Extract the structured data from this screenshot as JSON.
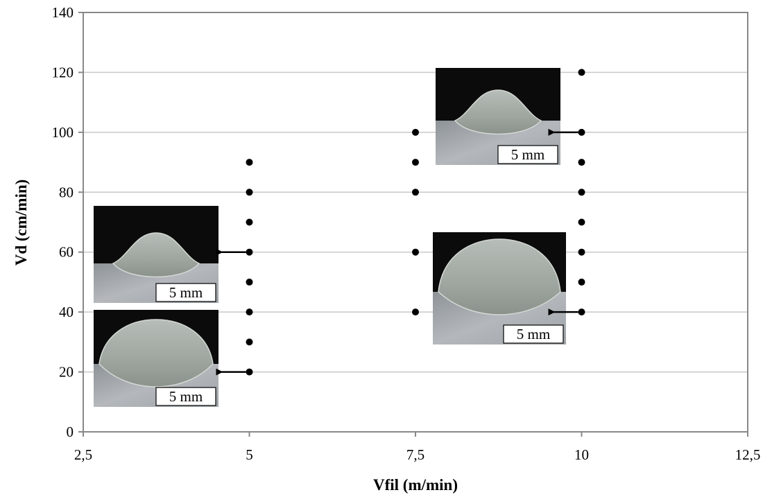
{
  "chart_data": {
    "type": "scatter",
    "xlabel": "Vfil (m/min)",
    "ylabel": "Vd (cm/min)",
    "xlim": [
      2.5,
      12.5
    ],
    "ylim": [
      0,
      140
    ],
    "x_ticks": [
      2.5,
      5,
      7.5,
      10,
      12.5
    ],
    "x_tick_labels": [
      "2,5",
      "5",
      "7,5",
      "10",
      "12,5"
    ],
    "y_ticks": [
      0,
      20,
      40,
      60,
      80,
      100,
      120,
      140
    ],
    "y_tick_labels": [
      "0",
      "20",
      "40",
      "60",
      "80",
      "100",
      "120",
      "140"
    ],
    "grid": "horizontal",
    "legend": "none",
    "colors": {
      "points": "#000000",
      "grid": "#c8c8c8",
      "axes": "#888888"
    },
    "points": [
      {
        "x": 5,
        "y": 20
      },
      {
        "x": 5,
        "y": 30
      },
      {
        "x": 5,
        "y": 40
      },
      {
        "x": 5,
        "y": 50
      },
      {
        "x": 5,
        "y": 60
      },
      {
        "x": 5,
        "y": 70
      },
      {
        "x": 5,
        "y": 80
      },
      {
        "x": 5,
        "y": 90
      },
      {
        "x": 7.5,
        "y": 40
      },
      {
        "x": 7.5,
        "y": 60
      },
      {
        "x": 7.5,
        "y": 80
      },
      {
        "x": 7.5,
        "y": 90
      },
      {
        "x": 7.5,
        "y": 100
      },
      {
        "x": 10,
        "y": 40
      },
      {
        "x": 10,
        "y": 50
      },
      {
        "x": 10,
        "y": 60
      },
      {
        "x": 10,
        "y": 70
      },
      {
        "x": 10,
        "y": 80
      },
      {
        "x": 10,
        "y": 90
      },
      {
        "x": 10,
        "y": 100
      },
      {
        "x": 10,
        "y": 120
      }
    ],
    "annotations": [
      {
        "type": "macrograph",
        "points_to": {
          "x": 5,
          "y": 60
        },
        "scale_label": "5 mm",
        "shape": "narrow"
      },
      {
        "type": "macrograph",
        "points_to": {
          "x": 5,
          "y": 20
        },
        "scale_label": "5 mm",
        "shape": "wide"
      },
      {
        "type": "macrograph",
        "points_to": {
          "x": 10,
          "y": 100
        },
        "scale_label": "5 mm",
        "shape": "narrow"
      },
      {
        "type": "macrograph",
        "points_to": {
          "x": 10,
          "y": 40
        },
        "scale_label": "5 mm",
        "shape": "wide"
      }
    ]
  }
}
